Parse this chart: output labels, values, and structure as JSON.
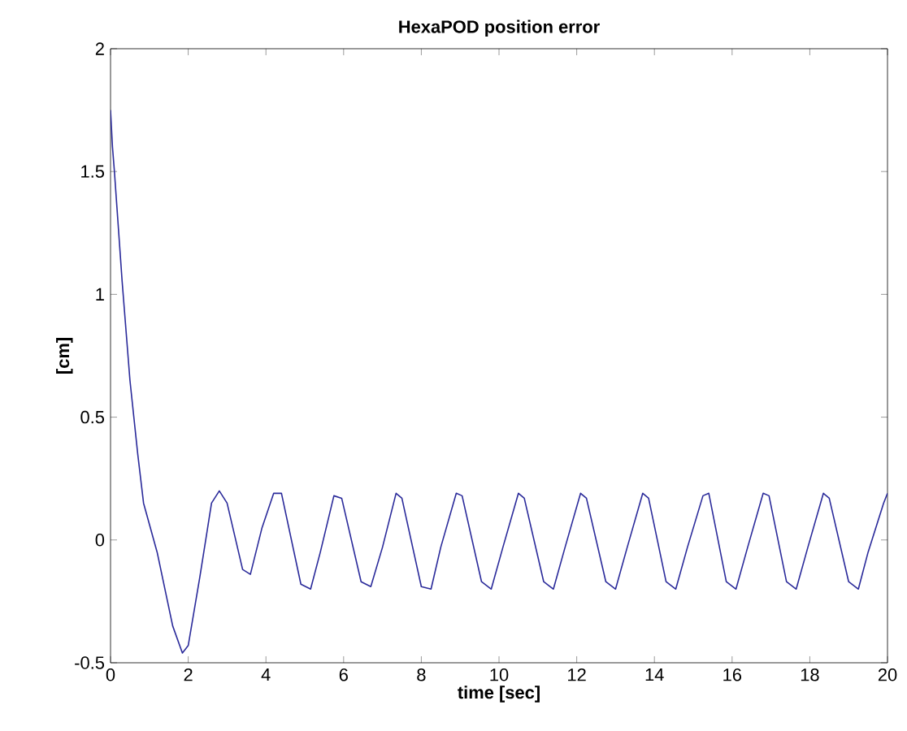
{
  "chart_data": {
    "type": "line",
    "title": "HexaPOD position error",
    "xlabel": "time [sec]",
    "ylabel": "[cm]",
    "xlim": [
      0,
      20
    ],
    "ylim": [
      -0.5,
      2
    ],
    "xticks": [
      0,
      2,
      4,
      6,
      8,
      10,
      12,
      14,
      16,
      18,
      20
    ],
    "yticks": [
      -0.5,
      0,
      0.5,
      1,
      1.5,
      2
    ],
    "series": [
      {
        "color": "#2a2a9a",
        "x": [
          0,
          0.05,
          0.1,
          0.3,
          0.5,
          0.7,
          0.85,
          1.2,
          1.6,
          1.85,
          2.0,
          2.3,
          2.6,
          2.8,
          3.0,
          3.4,
          3.6,
          3.9,
          4.2,
          4.4,
          4.9,
          5.15,
          5.4,
          5.75,
          5.95,
          6.45,
          6.7,
          7.0,
          7.35,
          7.5,
          8.0,
          8.25,
          8.5,
          8.9,
          9.05,
          9.55,
          9.8,
          10.1,
          10.5,
          10.65,
          11.15,
          11.4,
          11.7,
          12.1,
          12.25,
          12.75,
          13.0,
          13.3,
          13.7,
          13.85,
          14.3,
          14.55,
          14.85,
          15.25,
          15.4,
          15.85,
          16.1,
          16.4,
          16.8,
          16.95,
          17.4,
          17.65,
          17.95,
          18.35,
          18.5,
          19.0,
          19.25,
          19.5,
          19.9,
          20
        ],
        "values": [
          1.75,
          1.6,
          1.5,
          1.05,
          0.65,
          0.35,
          0.15,
          -0.05,
          -0.35,
          -0.46,
          -0.43,
          -0.15,
          0.15,
          0.2,
          0.15,
          -0.12,
          -0.14,
          0.05,
          0.19,
          0.19,
          -0.18,
          -0.2,
          -0.05,
          0.18,
          0.17,
          -0.17,
          -0.19,
          -0.03,
          0.19,
          0.17,
          -0.19,
          -0.2,
          -0.03,
          0.19,
          0.18,
          -0.17,
          -0.2,
          -0.03,
          0.19,
          0.17,
          -0.17,
          -0.2,
          -0.03,
          0.19,
          0.17,
          -0.17,
          -0.2,
          -0.03,
          0.19,
          0.17,
          -0.17,
          -0.2,
          -0.03,
          0.18,
          0.19,
          -0.17,
          -0.2,
          -0.03,
          0.19,
          0.18,
          -0.17,
          -0.2,
          -0.03,
          0.19,
          0.17,
          -0.17,
          -0.2,
          -0.05,
          0.15,
          0.19
        ]
      }
    ]
  }
}
